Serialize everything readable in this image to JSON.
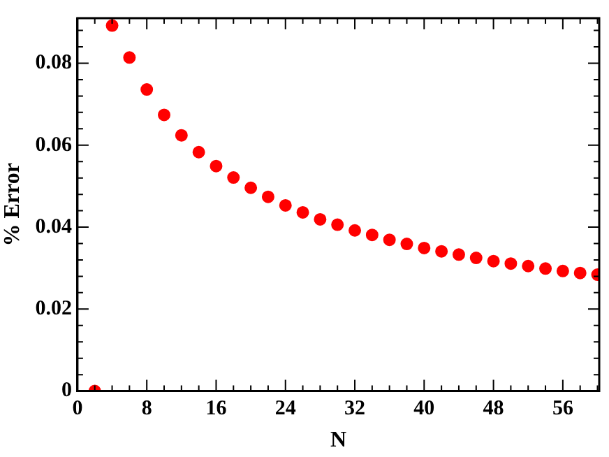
{
  "chart_data": {
    "type": "scatter",
    "xlabel": "N",
    "ylabel": "% Error",
    "marker": "circle",
    "grid": false,
    "legend": false,
    "x": [
      2,
      4,
      6,
      8,
      10,
      12,
      14,
      16,
      18,
      20,
      22,
      24,
      26,
      28,
      30,
      32,
      34,
      36,
      38,
      40,
      42,
      44,
      46,
      48,
      50,
      52,
      54,
      56,
      58,
      60
    ],
    "series": [
      {
        "color": "#ff0000",
        "values": [
          0,
          0.0892,
          0.0814,
          0.0736,
          0.0674,
          0.0624,
          0.0583,
          0.0549,
          0.0521,
          0.0496,
          0.0474,
          0.0453,
          0.0436,
          0.0419,
          0.0406,
          0.0392,
          0.0381,
          0.0369,
          0.0359,
          0.0349,
          0.0341,
          0.0333,
          0.0325,
          0.0317,
          0.0311,
          0.0305,
          0.0299,
          0.0293,
          0.0288,
          0.0284
        ]
      }
    ],
    "xlim": [
      0,
      60.2
    ],
    "ylim": [
      0,
      0.091
    ],
    "xticks": [
      0,
      {
        "value": 2,
        "label": null
      },
      {
        "value": 4,
        "label": null
      },
      {
        "value": 6,
        "label": null
      },
      8,
      {
        "value": 10,
        "label": null
      },
      {
        "value": 12,
        "label": null
      },
      {
        "value": 14,
        "label": null
      },
      16,
      {
        "value": 18,
        "label": null
      },
      {
        "value": 20,
        "label": null
      },
      {
        "value": 22,
        "label": null
      },
      24,
      {
        "value": 26,
        "label": null
      },
      {
        "value": 28,
        "label": null
      },
      {
        "value": 30,
        "label": null
      },
      32,
      {
        "value": 34,
        "label": null
      },
      {
        "value": 36,
        "label": null
      },
      {
        "value": 38,
        "label": null
      },
      40,
      {
        "value": 42,
        "label": null
      },
      {
        "value": 44,
        "label": null
      },
      {
        "value": 46,
        "label": null
      },
      48,
      {
        "value": 50,
        "label": null
      },
      {
        "value": 52,
        "label": null
      },
      {
        "value": 54,
        "label": null
      },
      56,
      {
        "value": 58,
        "label": null
      },
      {
        "value": 60,
        "label": null
      }
    ],
    "yticks": [
      0,
      {
        "value": 0.004,
        "label": null
      },
      {
        "value": 0.008,
        "label": null
      },
      {
        "value": 0.012,
        "label": null
      },
      {
        "value": 0.016,
        "label": null
      },
      0.02,
      {
        "value": 0.024,
        "label": null
      },
      {
        "value": 0.028,
        "label": null
      },
      {
        "value": 0.032,
        "label": null
      },
      {
        "value": 0.036,
        "label": null
      },
      0.04,
      {
        "value": 0.044,
        "label": null
      },
      {
        "value": 0.048,
        "label": null
      },
      {
        "value": 0.052,
        "label": null
      },
      {
        "value": 0.056,
        "label": null
      },
      0.06,
      {
        "value": 0.064,
        "label": null
      },
      {
        "value": 0.068,
        "label": null
      },
      {
        "value": 0.072,
        "label": null
      },
      {
        "value": 0.076,
        "label": null
      },
      0.08,
      {
        "value": 0.084,
        "label": null
      },
      {
        "value": 0.088,
        "label": null
      }
    ]
  }
}
